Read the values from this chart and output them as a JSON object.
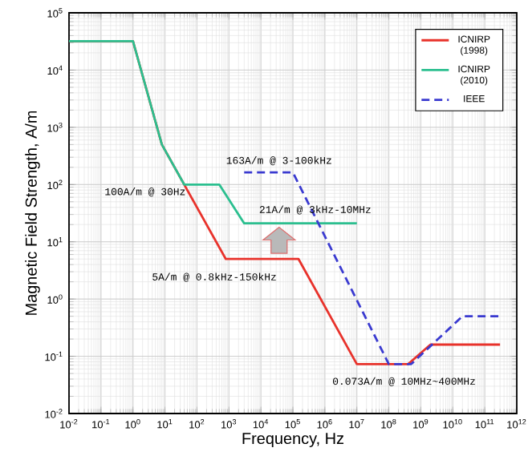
{
  "chart_data": {
    "type": "line",
    "xlabel": "Frequency, Hz",
    "ylabel": "Magnetic Field Strength, A/m",
    "log": "xy",
    "grid": true,
    "legend": "top right",
    "marker": "none",
    "xlim": [
      0.01,
      1000000000000
    ],
    "ylim": [
      0.01,
      100000
    ],
    "xticks": [
      {
        "value": 0.01,
        "label": "10$^{-2}$"
      },
      {
        "value": 0.1,
        "label": "10$^{-1}$"
      },
      {
        "value": 1,
        "label": "10$^{0}$"
      },
      {
        "value": 10,
        "label": "10$^{1}$"
      },
      {
        "value": 100,
        "label": "10$^{2}$"
      },
      {
        "value": 1000,
        "label": "10$^{3}$"
      },
      {
        "value": 10000,
        "label": "10$^{4}$"
      },
      {
        "value": 100000,
        "label": "10$^{5}$"
      },
      {
        "value": 1000000,
        "label": "10$^{6}$"
      },
      {
        "value": 10000000,
        "label": "10$^{7}$"
      },
      {
        "value": 100000000,
        "label": "10$^{8}$"
      },
      {
        "value": 1000000000,
        "label": "10$^{9}$"
      },
      {
        "value": 10000000000,
        "label": "10$^{10}$"
      },
      {
        "value": 100000000000,
        "label": "10$^{11}$"
      },
      {
        "value": 1000000000000,
        "label": "10$^{12}$"
      }
    ],
    "yticks": [
      {
        "value": 0.01,
        "label": "10$^{-2}$"
      },
      {
        "value": 0.1,
        "label": "10$^{-1}$"
      },
      {
        "value": 1,
        "label": "10$^{0}$"
      },
      {
        "value": 10,
        "label": "10$^{1}$"
      },
      {
        "value": 100,
        "label": "10$^{2}$"
      },
      {
        "value": 1000,
        "label": "10$^{3}$"
      },
      {
        "value": 10000,
        "label": "10$^{4}$"
      },
      {
        "value": 100000,
        "label": "10$^{5}$"
      }
    ],
    "series": [
      {
        "name": "ICNIRP (1998)",
        "color": "#e8322b",
        "line_style": "solid",
        "x": [
          0.01,
          1,
          8,
          800,
          150000,
          10000000,
          400000000,
          2000000000,
          300000000000
        ],
        "values": [
          32000,
          32000,
          500,
          5,
          5,
          0.073,
          0.073,
          0.16,
          0.16
        ]
      },
      {
        "name": "ICNIRP (2010)",
        "color": "#2bbf8f",
        "line_style": "solid",
        "x": [
          0.01,
          1,
          8,
          40,
          500,
          3000,
          10000000
        ],
        "values": [
          32000,
          32000,
          500,
          100,
          100,
          21,
          21
        ]
      },
      {
        "name": "IEEE",
        "color": "#3a3ad0",
        "line_style": "dashed",
        "x": [
          3000,
          100000,
          100000000,
          500000000,
          20000000000,
          300000000000
        ],
        "values": [
          163,
          163,
          0.073,
          0.073,
          0.5,
          0.5
        ]
      }
    ],
    "annotations": [
      "163A/m @ 3-100kHz",
      "100A/m @ 30Hz",
      "21A/m @ 3kHz-10MHz",
      "5A/m @ 0.8kHz-150kHz",
      "0.073A/m @ 10MHz~400MHz"
    ]
  }
}
